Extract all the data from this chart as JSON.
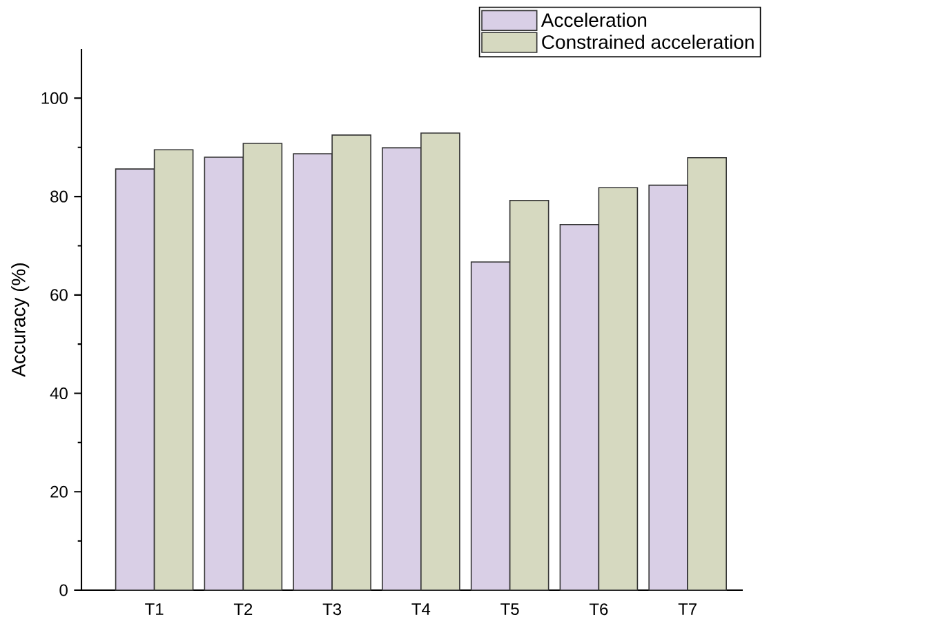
{
  "chart_data": {
    "type": "bar",
    "ylabel": "Accuracy (%)",
    "categories": [
      "T1",
      "T2",
      "T3",
      "T4",
      "T5",
      "T6",
      "T7"
    ],
    "series": [
      {
        "name": "Acceleration",
        "color": "#d9cfe6",
        "values": [
          85.6,
          88.0,
          88.7,
          89.9,
          66.7,
          74.3,
          82.3
        ]
      },
      {
        "name": "Constrained acceleration",
        "color": "#d6d9c0",
        "values": [
          89.5,
          90.8,
          92.5,
          92.9,
          79.2,
          81.8,
          87.9
        ]
      }
    ],
    "ylim": [
      0,
      110
    ],
    "yticks": [
      0,
      20,
      40,
      60,
      80,
      100
    ],
    "grid": false,
    "legend": "top right"
  }
}
